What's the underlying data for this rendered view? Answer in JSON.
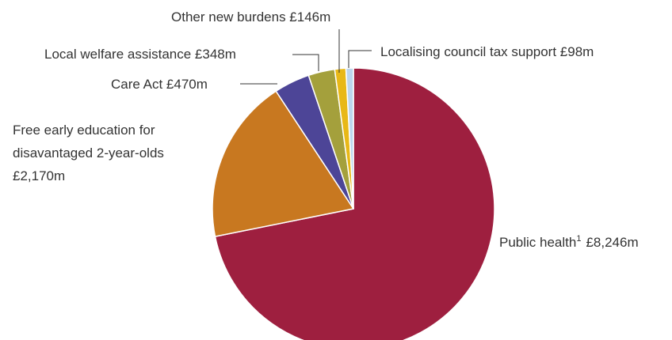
{
  "chart_data": {
    "type": "pie",
    "title": "",
    "slices": [
      {
        "name": "Public health",
        "footnote": "1",
        "value": 8246,
        "value_label": "£8,246m",
        "color": "#9e1f3f"
      },
      {
        "name": "Free early education for disavantaged 2-year-olds",
        "value": 2170,
        "value_label": "£2,170m",
        "color": "#c87820"
      },
      {
        "name": "Care Act",
        "value": 470,
        "value_label": "£470m",
        "color": "#4d4597"
      },
      {
        "name": "Local welfare assistance",
        "value": 348,
        "value_label": "£348m",
        "color": "#a4a03c"
      },
      {
        "name": "Other new burdens",
        "value": 146,
        "value_label": "£146m",
        "color": "#e8b817"
      },
      {
        "name": "Localising council tax support",
        "value": 98,
        "value_label": "£98m",
        "color": "#bcd6ee"
      }
    ],
    "labels": {
      "public_health": "Public health",
      "public_health_sup": "1",
      "public_health_value": "£8,246m",
      "early_education_line1": "Free early education for",
      "early_education_line2": "disavantaged 2-year-olds",
      "early_education_value": "£2,170m",
      "care_act": "Care Act £470m",
      "local_welfare": "Local welfare assistance £348m",
      "other_burdens": "Other new burdens £146m",
      "council_tax": "Localising council tax support £98m"
    }
  }
}
